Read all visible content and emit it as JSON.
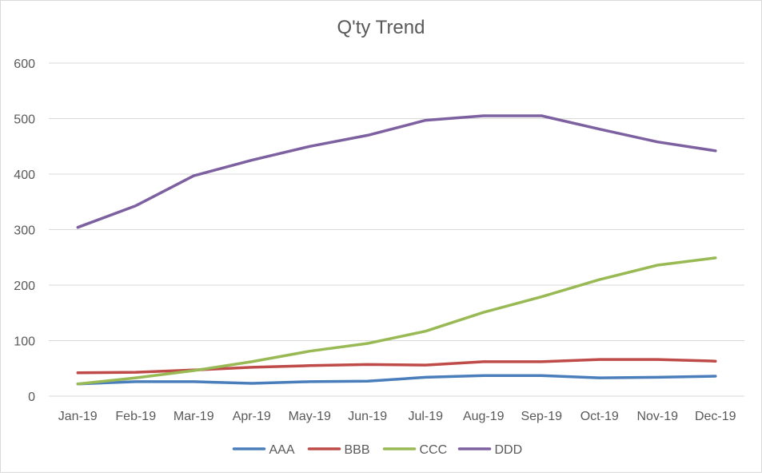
{
  "chart_data": {
    "type": "line",
    "title": "Q'ty Trend",
    "xlabel": "",
    "ylabel": "",
    "categories": [
      "Jan-19",
      "Feb-19",
      "Mar-19",
      "Apr-19",
      "May-19",
      "Jun-19",
      "Jul-19",
      "Aug-19",
      "Sep-19",
      "Oct-19",
      "Nov-19",
      "Dec-19"
    ],
    "ylim": [
      0,
      600
    ],
    "yticks": [
      0,
      100,
      200,
      300,
      400,
      500,
      600
    ],
    "grid": true,
    "legend_position": "bottom",
    "series": [
      {
        "name": "AAA",
        "color": "#4a7ebb",
        "values": [
          22,
          26,
          26,
          23,
          26,
          27,
          34,
          37,
          37,
          33,
          34,
          36
        ]
      },
      {
        "name": "BBB",
        "color": "#be4b48",
        "values": [
          42,
          43,
          47,
          52,
          55,
          57,
          56,
          62,
          62,
          66,
          66,
          63
        ]
      },
      {
        "name": "CCC",
        "color": "#98b954",
        "values": [
          22,
          33,
          46,
          62,
          81,
          95,
          117,
          151,
          179,
          210,
          236,
          249
        ]
      },
      {
        "name": "DDD",
        "color": "#7d60a0",
        "values": [
          304,
          343,
          397,
          425,
          450,
          470,
          497,
          505,
          505,
          481,
          458,
          442
        ]
      }
    ]
  }
}
